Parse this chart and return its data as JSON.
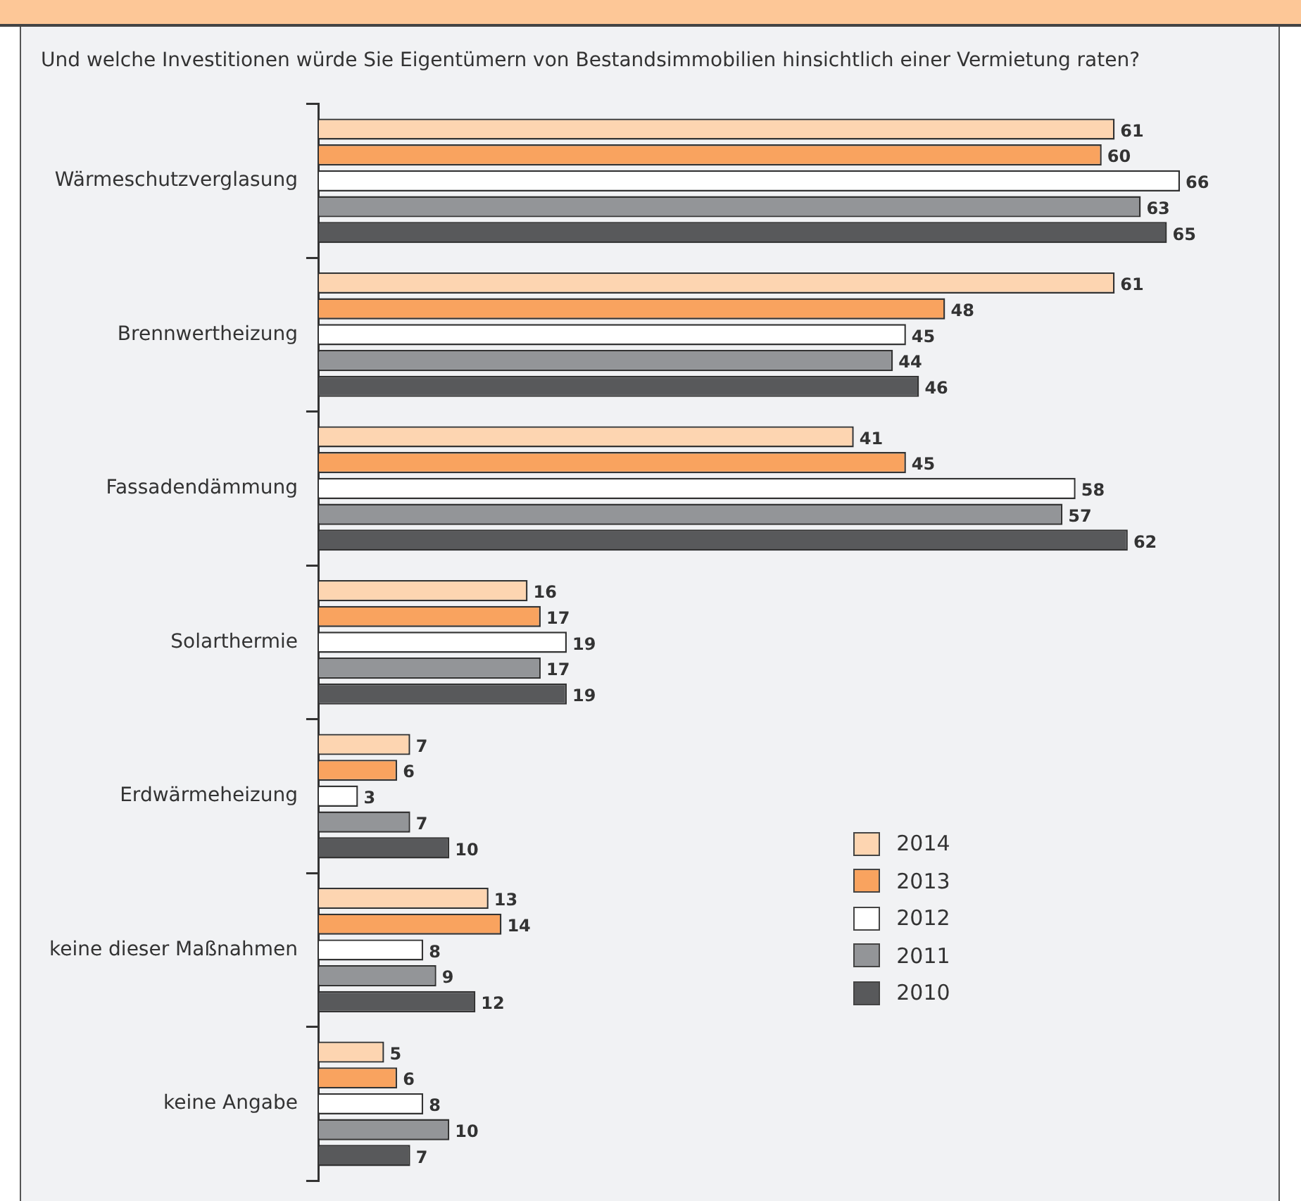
{
  "chart_data": {
    "type": "bar",
    "orientation": "horizontal",
    "subtitle": "Und welche Investitionen würde Sie Eigentümern von Bestandsimmobilien hinsichtlich einer Vermietung raten?",
    "categories": [
      "Wärmeschutzverglasung",
      "Brennwertheizung",
      "Fassadendämmung",
      "Solarthermie",
      "Erdwärmeheizung",
      "keine dieser Maßnahmen",
      "keine Angabe"
    ],
    "series": [
      {
        "name": "2014",
        "color": "#fdd5b1",
        "values": [
          61,
          61,
          41,
          16,
          7,
          13,
          5
        ]
      },
      {
        "name": "2013",
        "color": "#f9a35f",
        "values": [
          60,
          48,
          45,
          17,
          6,
          14,
          6
        ]
      },
      {
        "name": "2012",
        "color": "#ffffff",
        "values": [
          66,
          45,
          58,
          19,
          3,
          8,
          8
        ]
      },
      {
        "name": "2011",
        "color": "#939598",
        "values": [
          63,
          44,
          57,
          17,
          7,
          9,
          10
        ]
      },
      {
        "name": "2010",
        "color": "#58595b",
        "values": [
          65,
          46,
          62,
          19,
          10,
          12,
          7
        ]
      }
    ],
    "data_labels": true,
    "legend": "bottom right"
  }
}
